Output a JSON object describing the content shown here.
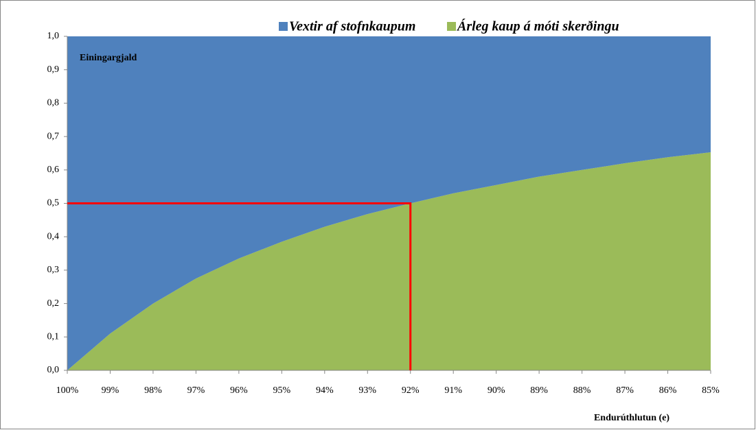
{
  "chart_data": {
    "type": "stacked_area",
    "y_axis_title": "Einingargjald",
    "x_axis_title": "Endurúthlutun (e)",
    "categories": [
      "100%",
      "99%",
      "98%",
      "97%",
      "96%",
      "95%",
      "94%",
      "93%",
      "92%",
      "91%",
      "90%",
      "89%",
      "88%",
      "87%",
      "86%",
      "85%"
    ],
    "series": [
      {
        "name": "Árleg kaup á móti skerðingu",
        "color": "#9bbb59",
        "values": [
          0,
          0.11,
          0.2,
          0.275,
          0.335,
          0.385,
          0.43,
          0.468,
          0.5,
          0.53,
          0.555,
          0.58,
          0.6,
          0.62,
          0.638,
          0.653
        ]
      },
      {
        "name": "Vextir af stofnkaupum",
        "color": "#4f81bd",
        "values": [
          1,
          0.89,
          0.8,
          0.725,
          0.665,
          0.615,
          0.57,
          0.532,
          0.5,
          0.47,
          0.445,
          0.42,
          0.4,
          0.38,
          0.362,
          0.347
        ]
      }
    ],
    "ylim": [
      0,
      1
    ],
    "yticks": [
      {
        "value": 0,
        "label": "0,0"
      },
      {
        "value": 0.1,
        "label": "0,1"
      },
      {
        "value": 0.2,
        "label": "0,2"
      },
      {
        "value": 0.3,
        "label": "0,3"
      },
      {
        "value": 0.4,
        "label": "0,4"
      },
      {
        "value": 0.5,
        "label": "0,5"
      },
      {
        "value": 0.6,
        "label": "0,6"
      },
      {
        "value": 0.7,
        "label": "0,7"
      },
      {
        "value": 0.8,
        "label": "0,8"
      },
      {
        "value": 0.9,
        "label": "0,9"
      },
      {
        "value": 1,
        "label": "1,0"
      }
    ],
    "reference_line": {
      "x": "92%",
      "y": 0.5,
      "color": "#ff0000"
    }
  }
}
